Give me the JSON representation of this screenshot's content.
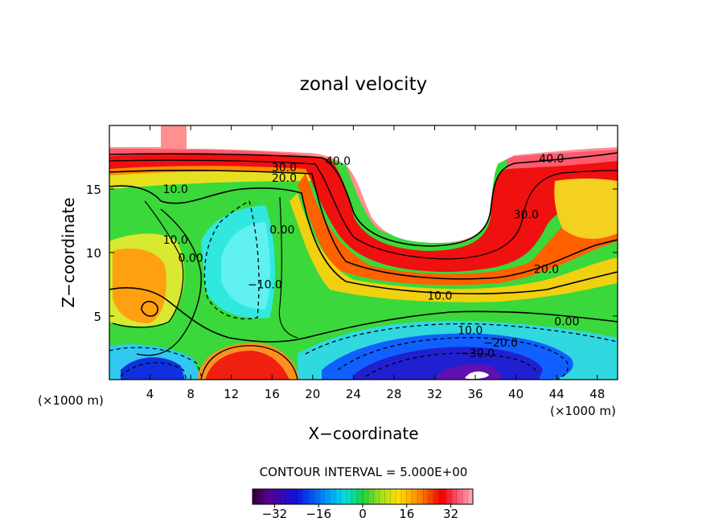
{
  "chart_data": {
    "type": "heatmap",
    "title": "zonal velocity",
    "xlabel": "X−coordinate",
    "ylabel": "Z−coordinate",
    "x_unit_left": "(×1000 m)",
    "x_unit_right": "(×1000 m)",
    "xlim": [
      0,
      50
    ],
    "ylim": [
      0,
      20
    ],
    "x_ticks": [
      4,
      8,
      12,
      16,
      20,
      24,
      28,
      32,
      36,
      40,
      44,
      48
    ],
    "y_ticks": [
      5,
      10,
      15
    ],
    "contour_interval_label": "CONTOUR INTERVAL = 5.000E+00",
    "contour_interval": 5.0,
    "colorbar": {
      "range": [
        -40,
        40
      ],
      "ticks": [
        -32,
        -16,
        0,
        16,
        32
      ],
      "tick_labels": [
        "−32",
        "−16",
        "0",
        "16",
        "32"
      ]
    },
    "contour_labels": [
      {
        "text": "40.0",
        "value": 40,
        "x": 22.5,
        "z": 17.2
      },
      {
        "text": "40.0",
        "value": 40,
        "x": 43.5,
        "z": 17.4
      },
      {
        "text": "30.0",
        "value": 30,
        "x": 17.2,
        "z": 16.7
      },
      {
        "text": "20.0",
        "value": 20,
        "x": 17.2,
        "z": 15.9
      },
      {
        "text": "30.0",
        "value": 30,
        "x": 41.0,
        "z": 13.0
      },
      {
        "text": "20.0",
        "value": 20,
        "x": 43.0,
        "z": 8.7
      },
      {
        "text": "10.0",
        "value": 10,
        "x": 6.5,
        "z": 15.0
      },
      {
        "text": "10.0",
        "value": 10,
        "x": 6.5,
        "z": 11.0
      },
      {
        "text": "10.0",
        "value": 10,
        "x": 32.5,
        "z": 6.6
      },
      {
        "text": "10.0",
        "value": 10,
        "x": 35.5,
        "z": 3.9
      },
      {
        "text": "0.00",
        "value": 0,
        "x": 17.0,
        "z": 11.8
      },
      {
        "text": "0.00",
        "value": 0,
        "x": 8.0,
        "z": 9.6
      },
      {
        "text": "0.00",
        "value": 0,
        "x": 45.0,
        "z": 4.6
      },
      {
        "text": "−10.0",
        "value": -10,
        "x": 15.3,
        "z": 7.5
      },
      {
        "text": "−20.0",
        "value": -20,
        "x": 38.5,
        "z": 2.9
      },
      {
        "text": "−30.0",
        "value": -30,
        "x": 36.2,
        "z": 2.1
      }
    ],
    "grid": false,
    "colormap": "rainbow (purple–blue–cyan–green–yellow–red–pink)",
    "missing_color": "#ffffff"
  }
}
